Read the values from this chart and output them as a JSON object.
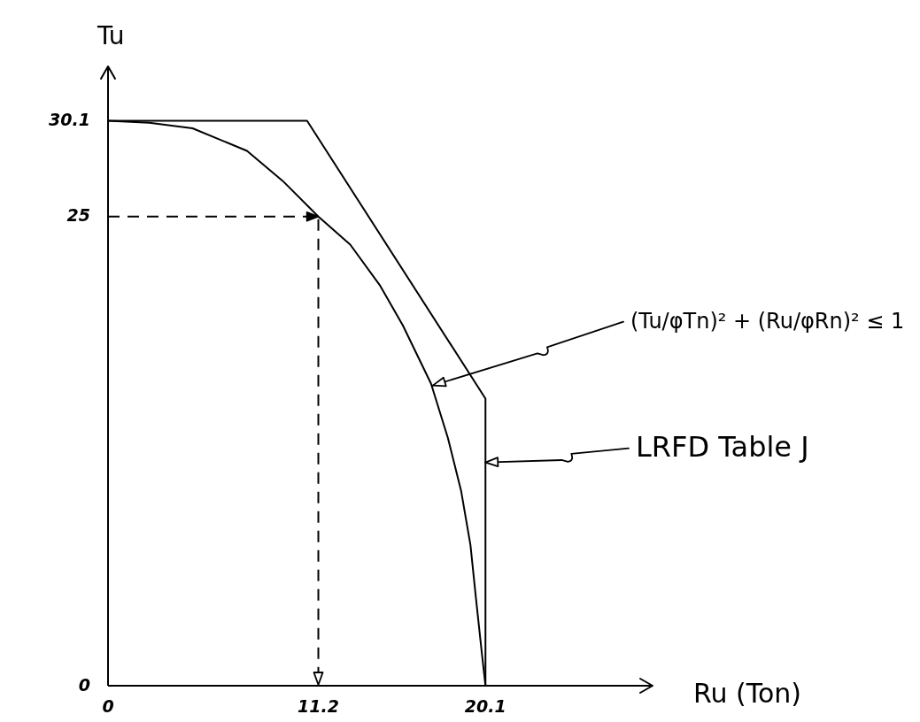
{
  "chart_data": {
    "type": "line",
    "xlabel": "Ru (Ton)",
    "ylabel": "Tu",
    "xlim": [
      0,
      29
    ],
    "ylim": [
      0,
      33
    ],
    "xticks": [
      0,
      11.2,
      20.1
    ],
    "yticks": [
      0,
      25,
      30.1
    ],
    "series": [
      {
        "color": "#000000",
        "x": [
          0,
          2.2,
          4.5,
          7.4,
          9.3,
          11.2,
          12.9,
          14.5,
          15.7,
          17.2,
          18.1,
          18.8,
          19.3,
          19.6,
          19.9,
          20.1
        ],
        "values": [
          30.1,
          30.0,
          29.7,
          28.5,
          26.9,
          25,
          23.5,
          21.3,
          19.2,
          16.1,
          13.2,
          10.4,
          7.5,
          4.6,
          1.8,
          0
        ]
      },
      {
        "color": "#000000",
        "x": [
          0,
          10.6,
          20.1,
          20.1
        ],
        "values": [
          30.1,
          30.1,
          15.3,
          0
        ]
      }
    ],
    "annotations": [
      {
        "text": "(Tu/φTn)² + (Ru/φRn)² ≤ 1",
        "x": 17.3,
        "y": 16.0
      },
      {
        "text": "LRFD Table J",
        "x": 20.1,
        "y": 11.9
      }
    ]
  }
}
